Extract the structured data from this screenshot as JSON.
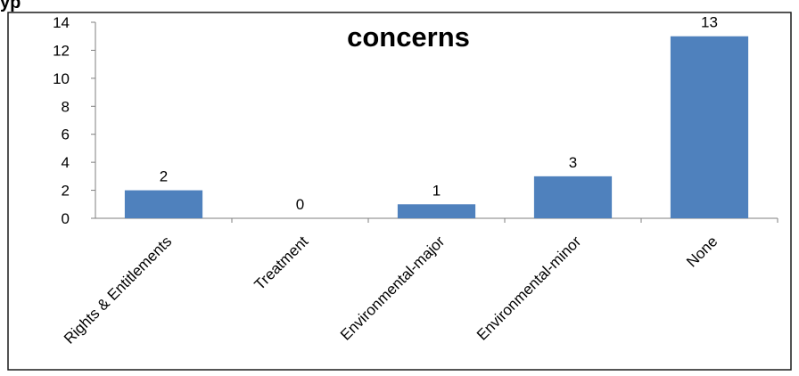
{
  "chart_data": {
    "type": "bar",
    "title": "concerns",
    "categories": [
      "Rights & Entitlements",
      "Treatment",
      "Environmental-major",
      "Environmental-minor",
      "None"
    ],
    "values": [
      2,
      0,
      1,
      3,
      13
    ],
    "data_labels": [
      "2",
      "0",
      "1",
      "3",
      "13"
    ],
    "y_ticks": [
      "0",
      "2",
      "4",
      "6",
      "8",
      "10",
      "12",
      "14"
    ],
    "xlabel": "",
    "ylabel": "",
    "ylim": [
      0,
      14
    ],
    "grid": false,
    "legend": "none",
    "bar_color": "#4f81bd",
    "header_fragment": "yp"
  }
}
